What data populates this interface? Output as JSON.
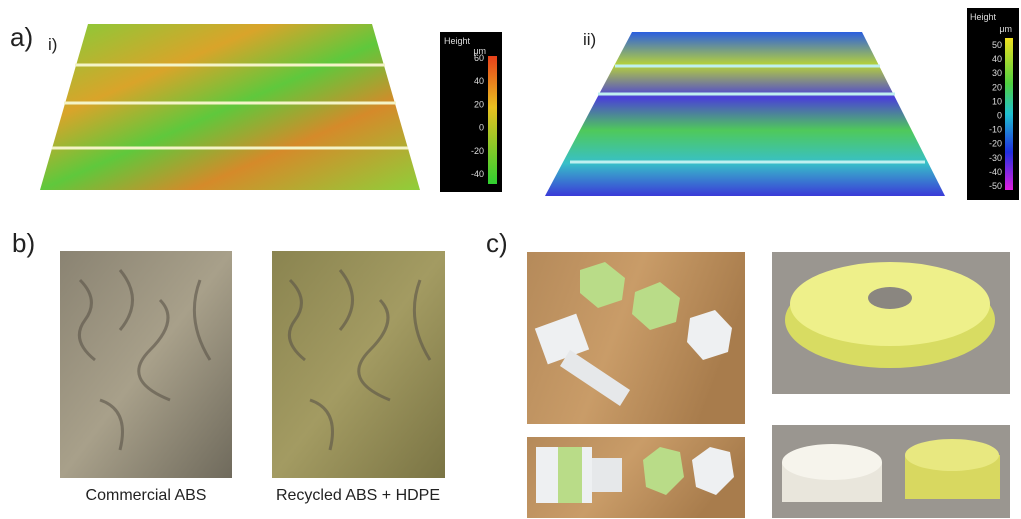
{
  "panels": {
    "a": {
      "label": "a)",
      "i": {
        "label": "i)",
        "colorbar": {
          "title": "Height",
          "unit": "μm",
          "ticks": [
            60,
            40,
            20,
            0,
            -20,
            -40
          ]
        }
      },
      "ii": {
        "label": "ii)",
        "colorbar": {
          "title": "Height",
          "unit": "μm",
          "ticks": [
            50,
            40,
            30,
            20,
            10,
            0,
            -10,
            -20,
            -30,
            -40,
            -50
          ]
        }
      }
    },
    "b": {
      "label": "b)",
      "captions": [
        "Commercial ABS",
        "Recycled ABS + HDPE"
      ]
    },
    "c": {
      "label": "c)"
    }
  }
}
